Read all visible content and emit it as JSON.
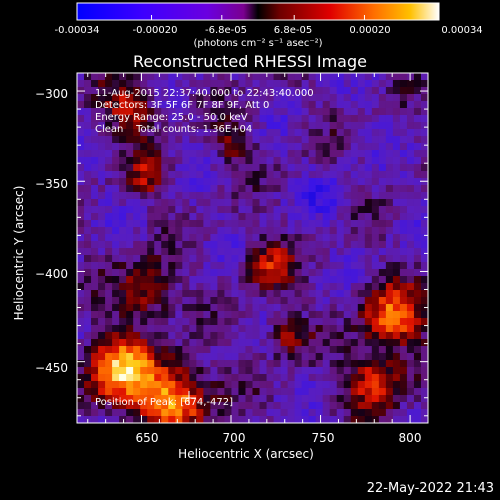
{
  "colorbar": {
    "tick_labels": [
      "-0.00034",
      "-0.00020",
      "-6.8e-05",
      "6.8e-05",
      "0.00020",
      "0.00034"
    ],
    "tick_values": [
      -0.00034,
      -0.0002,
      -6.8e-05,
      6.8e-05,
      0.0002,
      0.00034
    ],
    "unit_label": "(photons cm⁻² s⁻¹ asec⁻²)",
    "range": [
      -0.00034,
      0.00034
    ]
  },
  "chart_data": {
    "type": "heatmap",
    "title": "Reconstructed RHESSI Image",
    "xlabel": "Heliocentric X (arcsec)",
    "ylabel": "Heliocentric Y (arcsec)",
    "xlim": [
      614,
      810
    ],
    "ylim": [
      -484,
      -290
    ],
    "x_ticks": [
      650,
      700,
      750,
      800
    ],
    "y_ticks": [
      -300,
      -350,
      -400,
      -450
    ],
    "x_tick_labels": [
      "650",
      "700",
      "750",
      "800"
    ],
    "y_tick_labels": [
      "−300",
      "−350",
      "−400",
      "−450"
    ],
    "peak": [
      674,
      -472
    ],
    "grid": false
  },
  "annotations": {
    "time_range": "11-Aug-2015 22:37:40.000 to 22:43:40.000",
    "detectors": "Detectors: 3F 5F 6F 7F 8F 9F, Att 0",
    "energy_range": "Energy Range: 25.0 - 50.0 keV",
    "clean_counts": "Clean    Total counts: 1.36E+04",
    "peak_position": "Position of Peak: [674,-472]"
  },
  "footer": {
    "timestamp": "22-May-2022 21:43"
  },
  "colors": {
    "background": "#000000",
    "foreground": "#ffffff"
  }
}
